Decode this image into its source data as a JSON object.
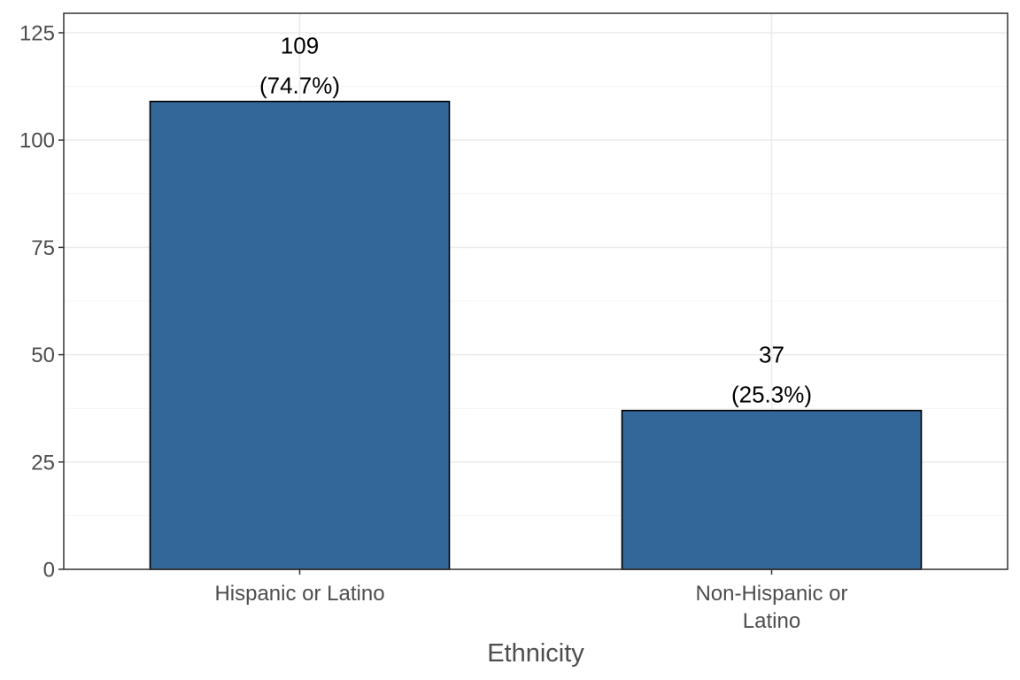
{
  "chart_data": {
    "type": "bar",
    "categories": [
      [
        "Hispanic or Latino"
      ],
      [
        "Non-Hispanic or",
        "Latino"
      ]
    ],
    "values": [
      109,
      37
    ],
    "data_labels": [
      [
        "109",
        "(74.7%)"
      ],
      [
        "37",
        "(25.3%)"
      ]
    ],
    "xlabel": "Ethnicity",
    "ylabel": "",
    "ylim": [
      0,
      125
    ],
    "yticks": [
      0,
      25,
      50,
      75,
      100,
      125
    ],
    "grid": true,
    "legend": "none",
    "colors": {
      "bar_fill": "#336799",
      "bar_stroke": "#000000",
      "grid_major": "#ebebeb",
      "grid_minor": "#f4f4f4",
      "panel_border": "#333333",
      "tick_text": "#4d4d4d",
      "label_text": "#000000"
    }
  }
}
